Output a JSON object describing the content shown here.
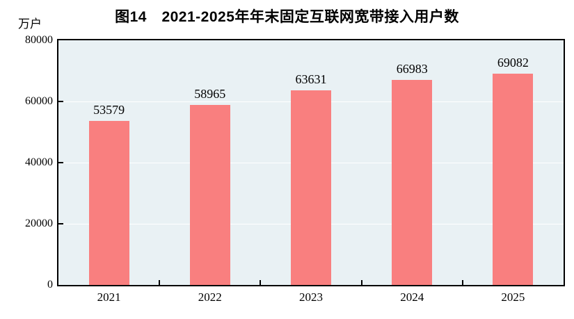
{
  "chart_data": {
    "type": "bar",
    "title": "图14　2021-2025年年末固定互联网宽带接入用户数",
    "unit": "万户",
    "categories": [
      "2021",
      "2022",
      "2023",
      "2024",
      "2025"
    ],
    "values": [
      53579,
      58965,
      63631,
      66983,
      69082
    ],
    "xlabel": "",
    "ylabel": "万户",
    "ylim": [
      0,
      80000
    ],
    "y_ticks": [
      0,
      20000,
      40000,
      60000,
      80000
    ],
    "grid": "horizontal white lines at major y ticks",
    "legend": "none",
    "colors": {
      "bar": "#f97f7f",
      "plot_background": "#e9f1f4",
      "gridline": "#ffffff",
      "axis": "#000000",
      "text": "#000000"
    }
  }
}
